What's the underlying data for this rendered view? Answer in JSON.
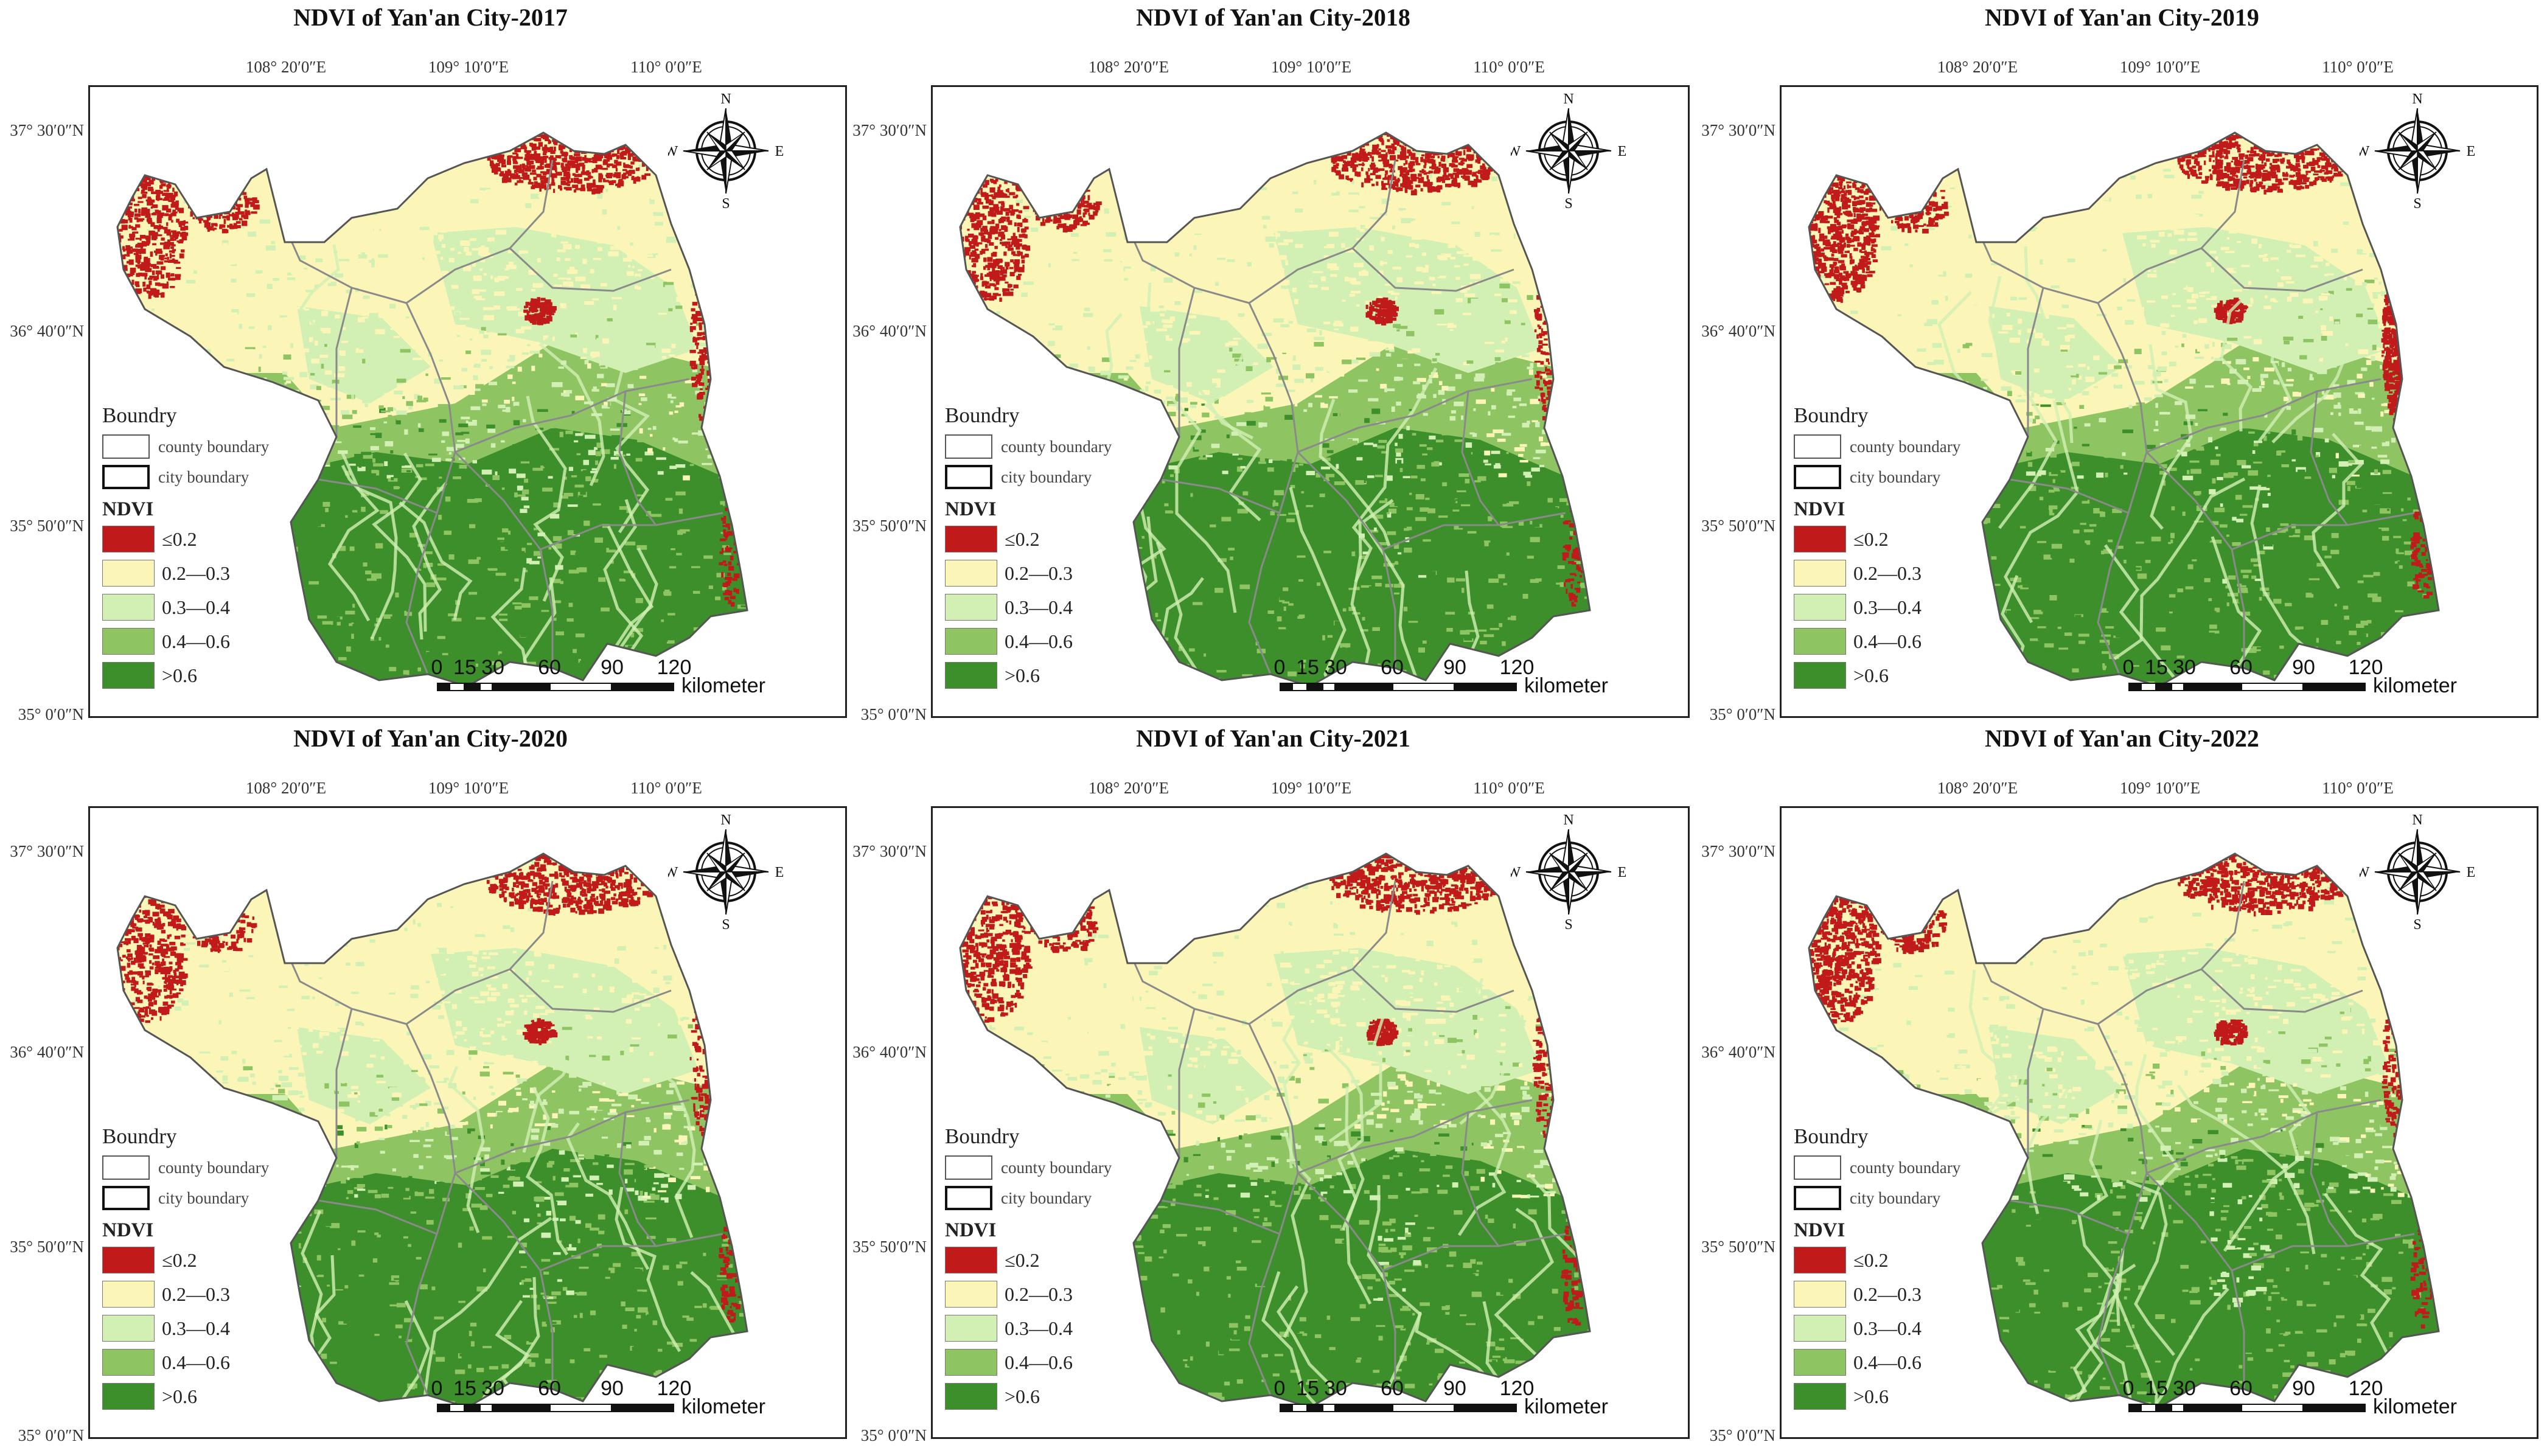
{
  "panels": [
    {
      "title": "NDVI of Yan'an City-2017"
    },
    {
      "title": "NDVI of Yan'an City-2018"
    },
    {
      "title": "NDVI of Yan'an City-2019"
    },
    {
      "title": "NDVI of Yan'an City-2020"
    },
    {
      "title": "NDVI of Yan'an City-2021"
    },
    {
      "title": "NDVI of Yan'an City-2022"
    }
  ],
  "longitude_labels": [
    "108° 20′0″E",
    "109° 10′0″E",
    "110° 0′0″E"
  ],
  "latitude_labels": [
    "37° 30′0″N",
    "36° 40′0″N",
    "35° 50′0″N",
    "35° 0′0″N"
  ],
  "compass": {
    "n": "N",
    "s": "S",
    "e": "E",
    "w": "W"
  },
  "legend": {
    "boundary_title": "Boundry",
    "county": "county boundary",
    "city": "city boundary",
    "ndvi_title": "NDVI",
    "classes": [
      {
        "label": "≤0.2",
        "color": "#c01a1a"
      },
      {
        "label": "0.2—0.3",
        "color": "#fbf6b8"
      },
      {
        "label": "0.3—0.4",
        "color": "#d2f0b4"
      },
      {
        "label": "0.4—0.6",
        "color": "#8fc463"
      },
      {
        "label": ">0.6",
        "color": "#3c8f2a"
      }
    ]
  },
  "scale_bar": {
    "ticks": [
      "0",
      "15",
      "30",
      "60",
      "90",
      "120"
    ],
    "unit": "kilometer"
  }
}
